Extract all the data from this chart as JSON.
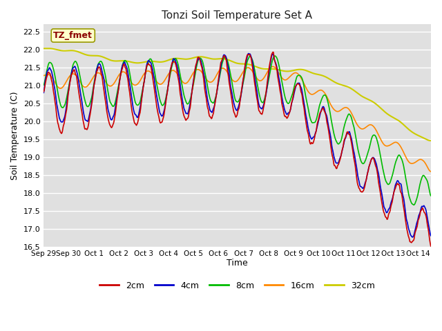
{
  "title": "Tonzi Soil Temperature Set A",
  "ylabel": "Soil Temperature (C)",
  "xlabel": "Time",
  "label_box": "TZ_fmet",
  "ylim": [
    16.5,
    22.7
  ],
  "plot_bg": "#e0e0e0",
  "fig_bg": "#ffffff",
  "grid_color": "#ffffff",
  "series": {
    "2cm": {
      "color": "#cc0000",
      "lw": 1.2
    },
    "4cm": {
      "color": "#0000cc",
      "lw": 1.2
    },
    "8cm": {
      "color": "#00bb00",
      "lw": 1.2
    },
    "16cm": {
      "color": "#ff8800",
      "lw": 1.2
    },
    "32cm": {
      "color": "#cccc00",
      "lw": 1.5
    }
  },
  "xtick_labels": [
    "Sep 29",
    "Sep 30",
    "Oct 1",
    "Oct 2",
    "Oct 3",
    "Oct 4",
    "Oct 5",
    "Oct 6",
    "Oct 7",
    "Oct 8",
    "Oct 9",
    "Oct 10",
    "Oct 11",
    "Oct 12",
    "Oct 13",
    "Oct 14"
  ],
  "legend": [
    {
      "label": "2cm",
      "color": "#cc0000"
    },
    {
      "label": "4cm",
      "color": "#0000cc"
    },
    {
      "label": "8cm",
      "color": "#00bb00"
    },
    {
      "label": "16cm",
      "color": "#ff8800"
    },
    {
      "label": "32cm",
      "color": "#cccc00"
    }
  ]
}
